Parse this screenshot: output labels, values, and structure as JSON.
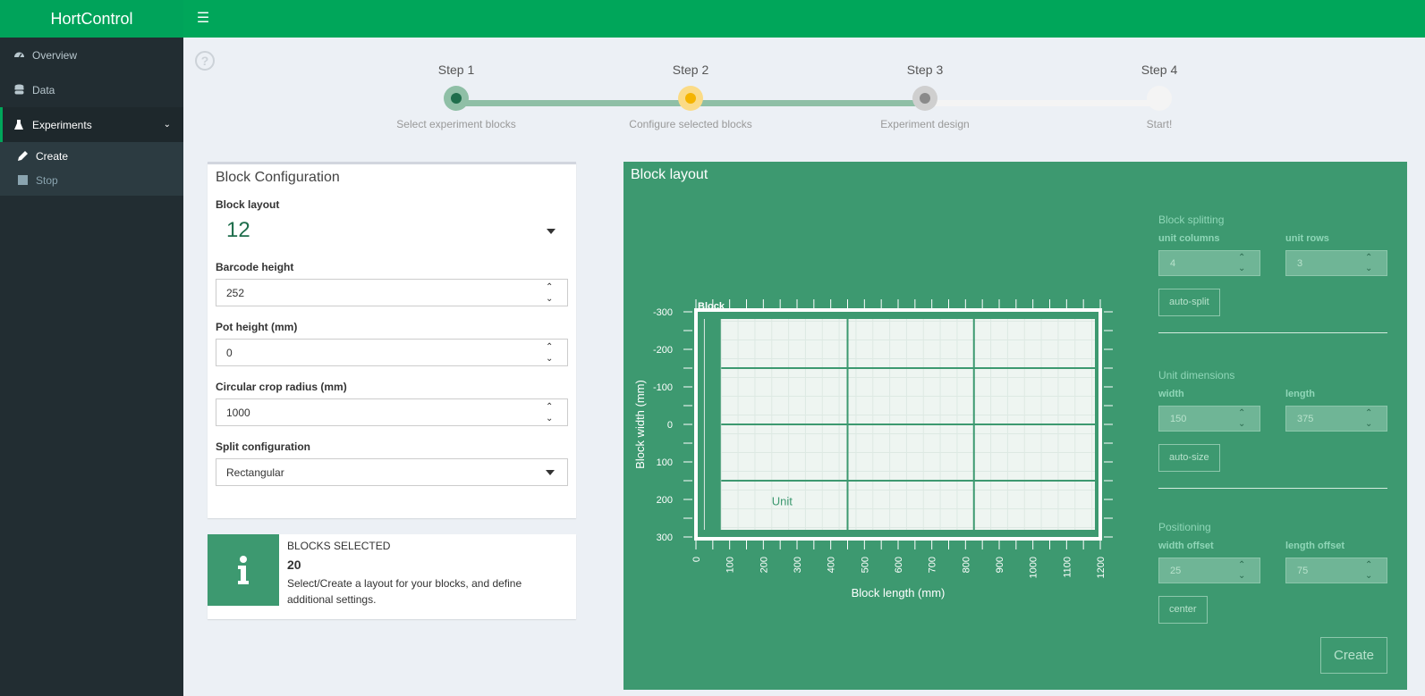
{
  "brand": "HortControl",
  "sidebar": {
    "items": [
      {
        "label": "Overview",
        "icon": "dashboard-icon"
      },
      {
        "label": "Data",
        "icon": "database-icon"
      },
      {
        "label": "Experiments",
        "icon": "flask-icon"
      }
    ],
    "sub_items": [
      {
        "label": "Create",
        "icon": "pencil-icon"
      },
      {
        "label": "Stop",
        "icon": "stop-icon"
      }
    ]
  },
  "help_symbol": "?",
  "steps": [
    {
      "title": "Step 1",
      "desc": "Select experiment blocks",
      "state": "done"
    },
    {
      "title": "Step 2",
      "desc": "Configure selected blocks",
      "state": "current"
    },
    {
      "title": "Step 3",
      "desc": "Experiment design",
      "state": "pending"
    },
    {
      "title": "Step 4",
      "desc": "Start!",
      "state": "pending"
    }
  ],
  "block_config": {
    "title": "Block Configuration",
    "block_layout_label": "Block layout",
    "block_layout_value": "12",
    "barcode_height_label": "Barcode height",
    "barcode_height_value": "252",
    "pot_height_label": "Pot height (mm)",
    "pot_height_value": "0",
    "crop_radius_label": "Circular crop radius (mm)",
    "crop_radius_value": "1000",
    "split_label": "Split configuration",
    "split_value": "Rectangular"
  },
  "info": {
    "label": "BLOCKS SELECTED",
    "count": "20",
    "text": "Select/Create a layout for your blocks, and define additional settings."
  },
  "layout_panel": {
    "title": "Block layout",
    "splitting": {
      "section": "Block splitting",
      "cols_label": "unit columns",
      "cols_value": "4",
      "rows_label": "unit rows",
      "rows_value": "3",
      "button": "auto-split"
    },
    "dimensions": {
      "section": "Unit dimensions",
      "width_label": "width",
      "width_value": "150",
      "length_label": "length",
      "length_value": "375",
      "button": "auto-size"
    },
    "positioning": {
      "section": "Positioning",
      "width_offset_label": "width offset",
      "width_offset_value": "25",
      "length_offset_label": "length offset",
      "length_offset_value": "75",
      "button": "center"
    },
    "create_button": "Create"
  },
  "colors": {
    "header": "#00a65a",
    "sidebar": "#222d32",
    "panel_green": "#3d9970",
    "step_done": "#2f7d5b",
    "step_current": "#f39c12"
  },
  "chart_data": {
    "type": "layout",
    "xlabel": "Block length (mm)",
    "ylabel": "Block width (mm)",
    "xlim": [
      0,
      1200
    ],
    "ylim": [
      -300,
      300
    ],
    "x_ticks": [
      0,
      100,
      200,
      300,
      400,
      500,
      600,
      700,
      800,
      900,
      1000,
      1100,
      1200
    ],
    "y_ticks": [
      -300,
      -200,
      -100,
      0,
      100,
      200,
      300
    ],
    "block_label": "Block",
    "unit_label": "Unit",
    "block": {
      "x0": 0,
      "x1": 1200,
      "y0": -300,
      "y1": 300
    },
    "units_area": {
      "x0": 75,
      "x1": 1200,
      "y0": -300,
      "y1": 300
    },
    "unit_x_lines": [
      450,
      825
    ],
    "unit_y_lines": [
      -150,
      0,
      150
    ]
  }
}
